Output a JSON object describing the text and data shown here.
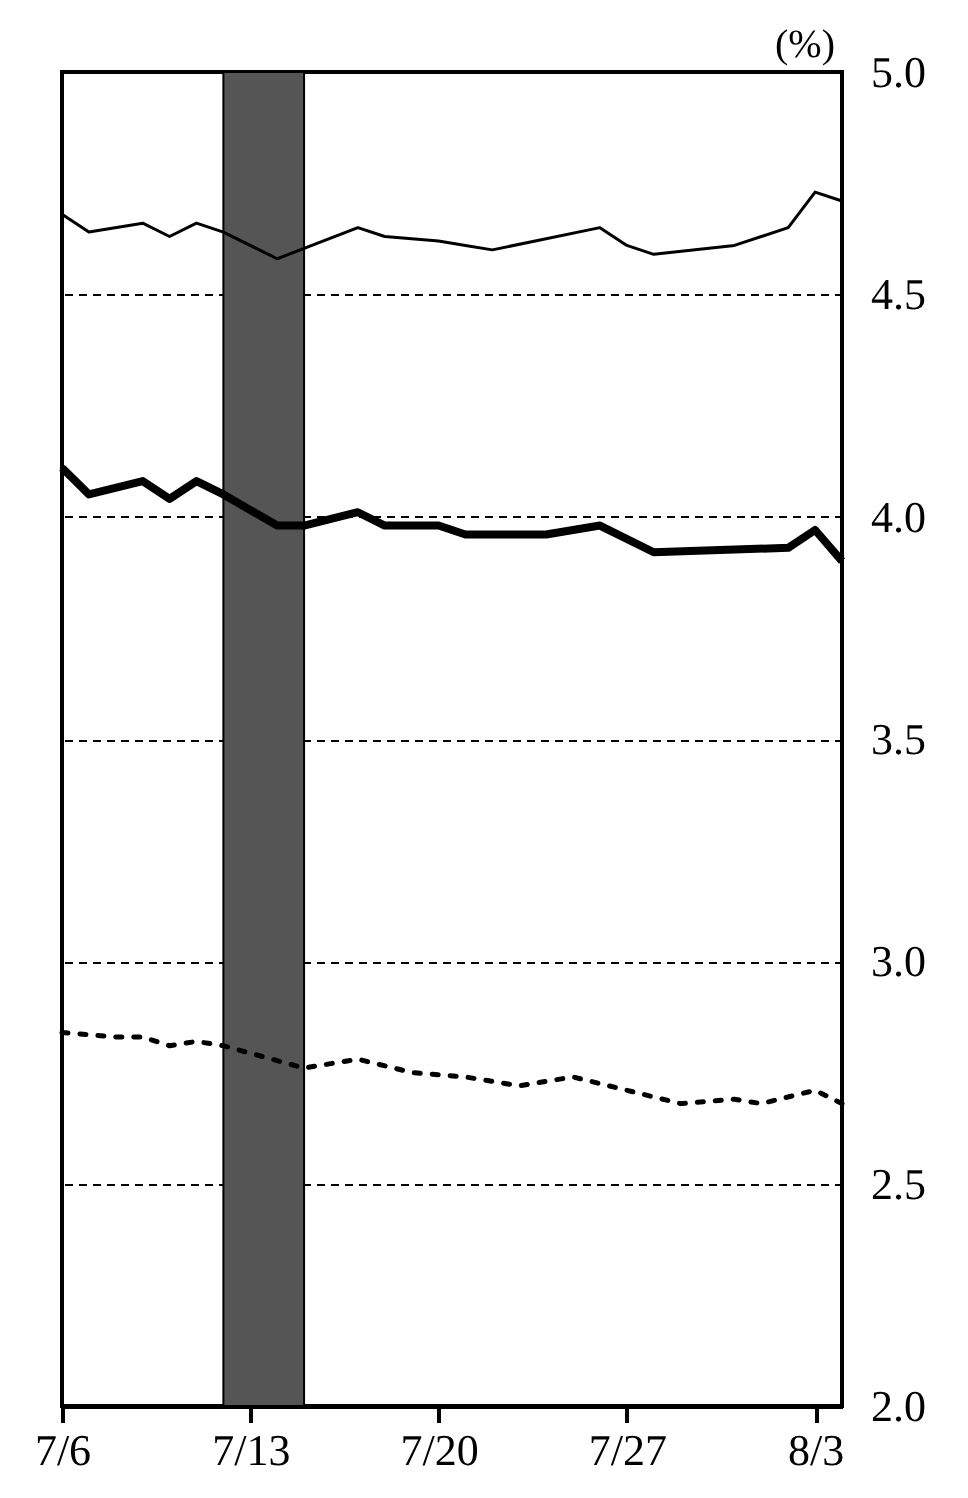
{
  "chart_data": {
    "type": "line",
    "ylabel": "(%)",
    "xlim": [
      "--07-06",
      "--08-04"
    ],
    "xticks": [
      {
        "value": "--07-06",
        "label": "7/6"
      },
      {
        "value": "--07-13",
        "label": "7/13"
      },
      {
        "value": "--07-20",
        "label": "7/20"
      },
      {
        "value": "--07-27",
        "label": "7/27"
      },
      {
        "value": "--08-03",
        "label": "8/3"
      }
    ],
    "ylim": [
      2,
      5
    ],
    "yticks": [
      {
        "value": 2,
        "label": "2.0"
      },
      {
        "value": 2.5,
        "label": "2.5"
      },
      {
        "value": 3,
        "label": "3.0"
      },
      {
        "value": 3.5,
        "label": "3.5"
      },
      {
        "value": 4,
        "label": "4.0"
      },
      {
        "value": 4.5,
        "label": "4.5"
      },
      {
        "value": 5,
        "label": "5.0"
      }
    ],
    "grid": "y",
    "bands": [
      {
        "axis": "x",
        "from": "--07-12",
        "to": "--07-15",
        "color": "#555555"
      }
    ],
    "series": [
      {
        "color": "#000000",
        "line_style": "solid",
        "x": [
          "--07-06",
          "--07-07",
          "--07-09",
          "--07-10",
          "--07-11",
          "--07-12",
          "--07-14",
          "--07-17",
          "--07-18",
          "--07-20",
          "--07-21",
          "--07-22",
          "--07-26",
          "--07-27",
          "--07-28",
          "--07-31",
          "--08-02",
          "--08-03",
          "--08-04"
        ],
        "values": [
          4.68,
          4.64,
          4.66,
          4.63,
          4.66,
          4.64,
          4.58,
          4.65,
          4.63,
          4.62,
          4.61,
          4.6,
          4.65,
          4.61,
          4.59,
          4.61,
          4.65,
          4.73,
          4.71
        ]
      },
      {
        "color": "#000000",
        "line_style": "solid",
        "x": [
          "--07-06",
          "--07-07",
          "--07-09",
          "--07-10",
          "--07-11",
          "--07-12",
          "--07-14",
          "--07-15",
          "--07-17",
          "--07-18",
          "--07-20",
          "--07-21",
          "--07-24",
          "--07-26",
          "--07-28",
          "--08-02",
          "--08-03",
          "--08-04"
        ],
        "values": [
          4.11,
          4.05,
          4.08,
          4.04,
          4.08,
          4.05,
          3.98,
          3.98,
          4.01,
          3.98,
          3.98,
          3.96,
          3.96,
          3.98,
          3.92,
          3.93,
          3.97,
          3.9
        ]
      },
      {
        "color": "#000000",
        "line_style": "dotted",
        "x": [
          "--07-06",
          "--07-08",
          "--07-09",
          "--07-10",
          "--07-11",
          "--07-12",
          "--07-15",
          "--07-17",
          "--07-19",
          "--07-21",
          "--07-23",
          "--07-25",
          "--07-27",
          "--07-29",
          "--07-31",
          "--08-01",
          "--08-03",
          "--08-04"
        ],
        "values": [
          2.84,
          2.83,
          2.83,
          2.81,
          2.82,
          2.81,
          2.76,
          2.78,
          2.75,
          2.74,
          2.72,
          2.74,
          2.71,
          2.68,
          2.69,
          2.68,
          2.71,
          2.68
        ]
      }
    ]
  }
}
